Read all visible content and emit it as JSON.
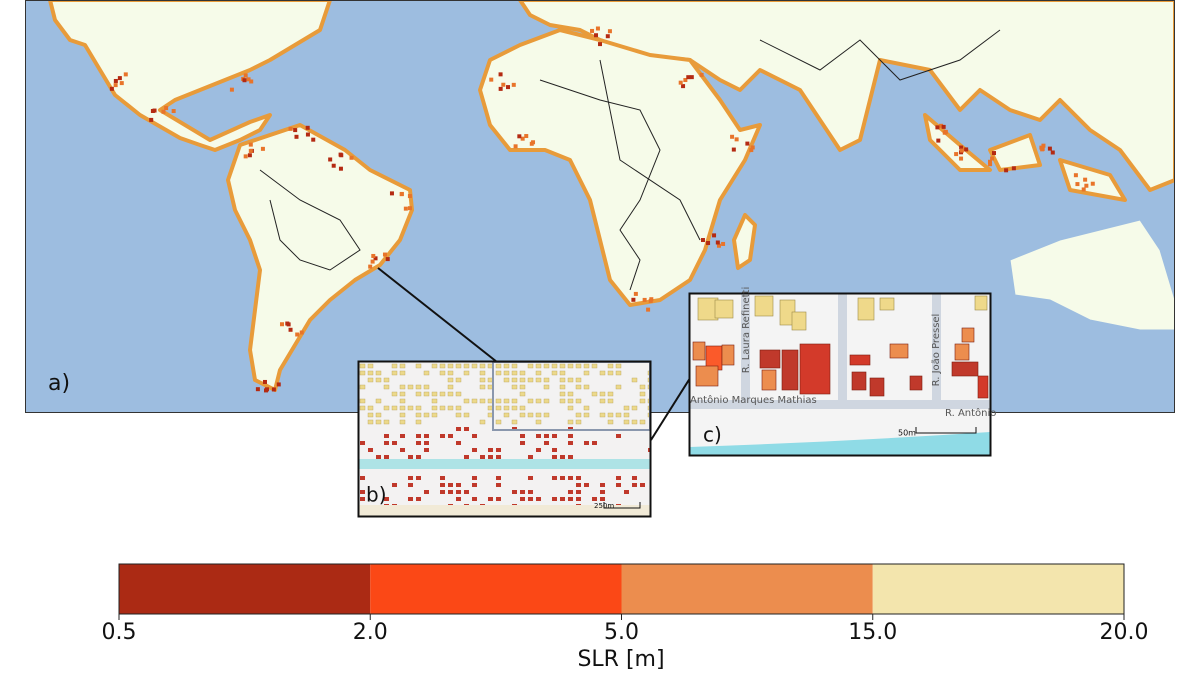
{
  "panels": {
    "a": "a)",
    "b": "b)",
    "c": "c)"
  },
  "inset_b": {
    "scale": "250m"
  },
  "inset_c": {
    "streets": [
      "R. Laura Refinetti",
      "R. João Pressel",
      "Antônio Marques Mathias",
      "R. Antônio"
    ],
    "scale": "50m"
  },
  "colorbar": {
    "label": "SLR [m]",
    "colors": [
      "#ab2a14",
      "#fb4816",
      "#ec8d4e",
      "#f3e5ad"
    ],
    "ticks": [
      {
        "value": 0.5,
        "label": "0.5"
      },
      {
        "value": 2,
        "label": "2.0"
      },
      {
        "value": 5,
        "label": "5.0"
      },
      {
        "value": 15,
        "label": "15.0"
      },
      {
        "value": 20,
        "label": "20.0"
      }
    ]
  }
}
